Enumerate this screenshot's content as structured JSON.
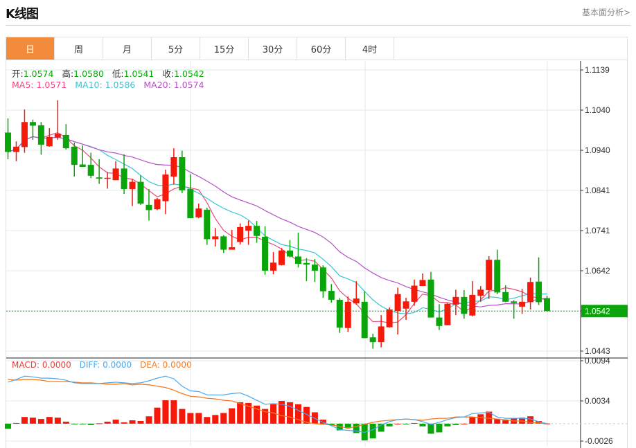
{
  "header": {
    "title": "K线图",
    "link": "基本面分析>"
  },
  "tabs": [
    {
      "label": "日",
      "active": true
    },
    {
      "label": "周"
    },
    {
      "label": "月"
    },
    {
      "label": "5分"
    },
    {
      "label": "15分"
    },
    {
      "label": "30分"
    },
    {
      "label": "60分"
    },
    {
      "label": "4时"
    }
  ],
  "ohlc_legend": {
    "open_label": "开:",
    "open": "1.0574",
    "high_label": "高:",
    "high": "1.0580",
    "low_label": "低:",
    "low": "1.0541",
    "close_label": "收:",
    "close": "1.0542"
  },
  "ma_legend": {
    "ma5": "MA5: 1.0571",
    "ma10": "MA10: 1.0586",
    "ma20": "MA20: 1.0574"
  },
  "macd_legend": {
    "macd": "MACD: 0.0000",
    "diff": "DIFF: 0.0000",
    "dea": "DEA: 0.0000"
  },
  "colors": {
    "up": "#f5190a",
    "down": "#0aa50a",
    "accent": "#f28c3c",
    "ma5": "#f0487a",
    "ma10": "#35c6d8",
    "ma20": "#b452c6",
    "diff": "#4aa8ee",
    "dea": "#f57a20"
  },
  "chart_data": [
    {
      "type": "candlestick",
      "title": "K线图 日",
      "ylim": [
        1.0443,
        1.1139
      ],
      "y_ticks": [
        "1.1139",
        "1.1040",
        "1.0940",
        "1.0841",
        "1.0741",
        "1.0642",
        "1.0542",
        "1.0443"
      ],
      "current_price": "1.0542",
      "candles": [
        [
          1.0984,
          1.1019,
          1.0918,
          1.0936
        ],
        [
          1.0936,
          1.0962,
          1.0913,
          1.0949
        ],
        [
          1.0948,
          1.1041,
          1.0934,
          1.101
        ],
        [
          1.101,
          1.1016,
          1.0966,
          1.1001
        ],
        [
          1.1002,
          1.101,
          1.0929,
          1.0954
        ],
        [
          1.095,
          1.0995,
          1.0949,
          1.0973
        ],
        [
          1.0972,
          1.1064,
          1.0966,
          1.0981
        ],
        [
          1.0978,
          1.1005,
          1.0942,
          1.0945
        ],
        [
          1.0949,
          1.0959,
          1.0875,
          1.0904
        ],
        [
          1.0905,
          1.0952,
          1.0899,
          1.0899
        ],
        [
          1.0904,
          1.0934,
          1.0871,
          1.0877
        ],
        [
          1.0873,
          1.0918,
          1.0857,
          1.087
        ],
        [
          1.0871,
          1.0886,
          1.0845,
          1.0872
        ],
        [
          1.0866,
          1.0913,
          1.0866,
          1.0895
        ],
        [
          1.0895,
          1.093,
          1.0832,
          1.0844
        ],
        [
          1.0844,
          1.0869,
          1.0802,
          1.0862
        ],
        [
          1.0862,
          1.0878,
          1.0805,
          1.0808
        ],
        [
          1.0805,
          1.0844,
          1.0766,
          1.0792
        ],
        [
          1.0794,
          1.0822,
          1.0792,
          1.0819
        ],
        [
          1.0814,
          1.0892,
          1.0782,
          1.088
        ],
        [
          1.0875,
          1.0945,
          1.0855,
          1.0923
        ],
        [
          1.0923,
          1.0939,
          1.0834,
          1.0841
        ],
        [
          1.0844,
          1.0881,
          1.0772,
          1.0772
        ],
        [
          1.0774,
          1.0808,
          1.0772,
          1.0796
        ],
        [
          1.0793,
          1.0798,
          1.0706,
          1.072
        ],
        [
          1.072,
          1.0748,
          1.0702,
          1.0727
        ],
        [
          1.0727,
          1.073,
          1.0686,
          1.0694
        ],
        [
          1.0694,
          1.0743,
          1.0694,
          1.07
        ],
        [
          1.0713,
          1.0759,
          1.0707,
          1.075
        ],
        [
          1.0741,
          1.0766,
          1.0706,
          1.0753
        ],
        [
          1.0753,
          1.0765,
          1.0711,
          1.0728
        ],
        [
          1.0726,
          1.0752,
          1.0632,
          1.0642
        ],
        [
          1.0642,
          1.0688,
          1.0633,
          1.0662
        ],
        [
          1.0656,
          1.0698,
          1.0655,
          1.0692
        ],
        [
          1.0692,
          1.0718,
          1.0675,
          1.0677
        ],
        [
          1.0677,
          1.0736,
          1.065,
          1.0659
        ],
        [
          1.0661,
          1.0673,
          1.0616,
          1.0657
        ],
        [
          1.0657,
          1.0671,
          1.0614,
          1.0642
        ],
        [
          1.065,
          1.0655,
          1.0575,
          1.0591
        ],
        [
          1.0592,
          1.0609,
          1.0563,
          1.057
        ],
        [
          1.057,
          1.0574,
          1.0488,
          1.0501
        ],
        [
          1.05,
          1.0578,
          1.0491,
          1.0565
        ],
        [
          1.0561,
          1.0616,
          1.0558,
          1.0573
        ],
        [
          1.0565,
          1.0591,
          1.0475,
          1.0475
        ],
        [
          1.0477,
          1.0486,
          1.0449,
          1.0465
        ],
        [
          1.0465,
          1.0532,
          1.0452,
          1.0504
        ],
        [
          1.0502,
          1.0551,
          1.0501,
          1.0546
        ],
        [
          1.0542,
          1.06,
          1.0484,
          1.0584
        ],
        [
          1.0548,
          1.0575,
          1.052,
          1.0566
        ],
        [
          1.0565,
          1.062,
          1.0555,
          1.0605
        ],
        [
          1.0604,
          1.0635,
          1.0604,
          1.0619
        ],
        [
          1.062,
          1.0639,
          1.0526,
          1.0526
        ],
        [
          1.0526,
          1.0559,
          1.0495,
          1.0505
        ],
        [
          1.0507,
          1.0563,
          1.0507,
          1.056
        ],
        [
          1.0558,
          1.0595,
          1.0532,
          1.0577
        ],
        [
          1.0577,
          1.0594,
          1.0523,
          1.0535
        ],
        [
          1.0531,
          1.0616,
          1.0529,
          1.0582
        ],
        [
          1.058,
          1.0604,
          1.0565,
          1.0595
        ],
        [
          1.0594,
          1.0678,
          1.0572,
          1.0669
        ],
        [
          1.0669,
          1.0694,
          1.0584,
          1.0588
        ],
        [
          1.0589,
          1.0606,
          1.0564,
          1.0565
        ],
        [
          1.0566,
          1.0569,
          1.0523,
          1.0562
        ],
        [
          1.0553,
          1.0597,
          1.0535,
          1.0565
        ],
        [
          1.0564,
          1.0625,
          1.0546,
          1.0614
        ],
        [
          1.0615,
          1.0675,
          1.0557,
          1.0564
        ],
        [
          1.0574,
          1.058,
          1.0541,
          1.0542
        ]
      ],
      "candle_format": [
        "open",
        "high",
        "low",
        "close"
      ],
      "moving_averages": [
        5,
        10,
        20
      ]
    },
    {
      "type": "bar",
      "title": "MACD",
      "ylim": [
        -0.0026,
        0.0094
      ],
      "y_ticks": [
        "0.0094",
        "0.0034",
        "-0.0026"
      ],
      "macd": [
        -0.00076,
        0.0001,
        0.001,
        0.0009,
        0.0007,
        0.001,
        0.0009,
        0.0003,
        -0.0001,
        -0.0001,
        -0.0002,
        5e-05,
        0.0003,
        0.0006,
        0.0002,
        0.0005,
        0.0004,
        0.0011,
        0.0024,
        0.0035,
        0.0035,
        0.0022,
        0.0016,
        0.0016,
        0.001,
        0.0013,
        0.0016,
        0.0023,
        0.0032,
        0.0031,
        0.0027,
        0.0022,
        0.0029,
        0.0034,
        0.0032,
        0.0029,
        0.0025,
        0.0017,
        0.0006,
        -0.0002,
        -0.001,
        -0.0006,
        -0.0014,
        -0.0025,
        -0.0022,
        -0.0012,
        -0.0004,
        0,
        -0.0001,
        0.0001,
        -0.0004,
        -0.0015,
        -0.0013,
        -0.0004,
        -0.0002,
        0,
        0.001,
        0.0014,
        0.0018,
        0.0007,
        0.0005,
        0.0008,
        0.0009,
        0.0011,
        0.0004,
        2e-05
      ],
      "diff": [
        0.0062,
        0.0066,
        0.0071,
        0.007,
        0.0068,
        0.0068,
        0.0067,
        0.0065,
        0.0061,
        0.006,
        0.006,
        0.006,
        0.0061,
        0.0062,
        0.0061,
        0.006,
        0.0061,
        0.0064,
        0.0068,
        0.0071,
        0.0067,
        0.0056,
        0.0049,
        0.0048,
        0.0043,
        0.0043,
        0.0043,
        0.0045,
        0.0046,
        0.0041,
        0.0035,
        0.0029,
        0.003,
        0.0029,
        0.0026,
        0.002,
        0.0014,
        0.0008,
        0.0002,
        -0.0003,
        -0.0009,
        -0.001,
        -0.0011,
        -0.0013,
        -0.0009,
        -0.0002,
        0.0003,
        0.0006,
        0.0007,
        0.0006,
        0.0003,
        -0.0001,
        0.0002,
        0.0006,
        0.0009,
        0.001,
        0.0015,
        0.0016,
        0.0017,
        0.001,
        0.0008,
        0.0008,
        0.0008,
        0.0007,
        0.0003,
        0.0
      ],
      "dea": [
        0.0066,
        0.0065,
        0.0066,
        0.0066,
        0.0065,
        0.0063,
        0.0063,
        0.0063,
        0.0062,
        0.0061,
        0.0061,
        0.006,
        0.0059,
        0.0059,
        0.006,
        0.0058,
        0.0059,
        0.0058,
        0.0056,
        0.0054,
        0.005,
        0.0045,
        0.0041,
        0.004,
        0.0038,
        0.0037,
        0.0035,
        0.0034,
        0.003,
        0.0026,
        0.0022,
        0.0018,
        0.0016,
        0.0012,
        0.001,
        0.0006,
        0.0002,
        0.0,
        -0.0001,
        -0.0002,
        -0.0004,
        -0.0007,
        -0.0004,
        -0.0001,
        0.0002,
        0.0004,
        0.0005,
        0.0006,
        0.0007,
        0.0006,
        0.0005,
        0.0007,
        0.0008,
        0.0008,
        0.001,
        0.001,
        0.001,
        0.0009,
        0.0008,
        0.0007,
        0.0006,
        0.0004,
        0.0004,
        0.0002,
        0.0001,
        0.0
      ]
    }
  ]
}
